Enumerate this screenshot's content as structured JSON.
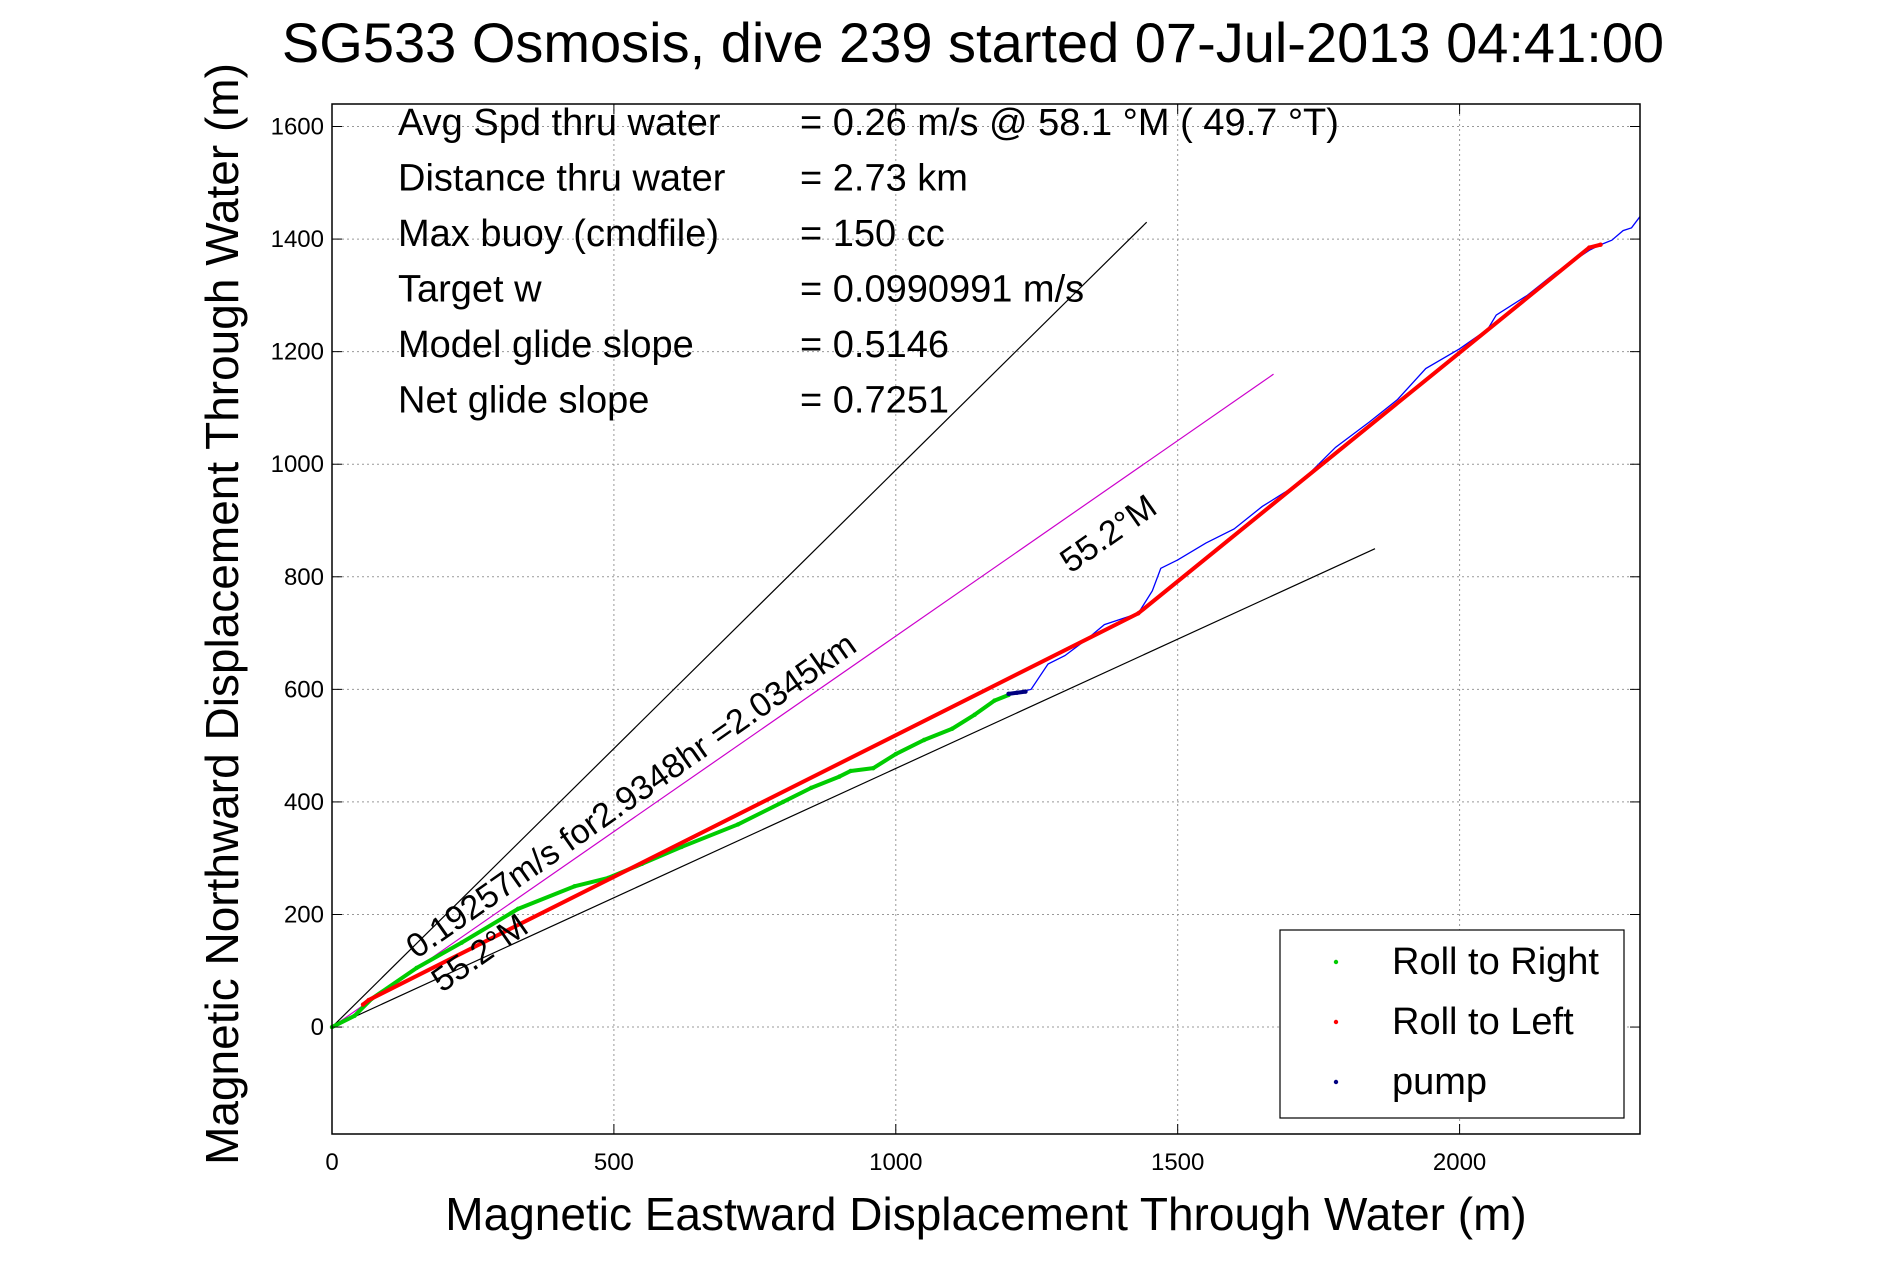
{
  "chart_data": {
    "type": "line",
    "title": "SG533 Osmosis, dive 239 started 07-Jul-2013 04:41:00",
    "xlabel": "Magnetic Eastward Displacement Through Water (m)",
    "ylabel": "Magnetic Northward Displacement Through Water (m)",
    "xlim": [
      0,
      2320
    ],
    "ylim": [
      -190,
      1640
    ],
    "xticks": [
      0,
      500,
      1000,
      1500,
      2000
    ],
    "yticks": [
      0,
      200,
      400,
      600,
      800,
      1000,
      1200,
      1400,
      1600
    ],
    "grid": true,
    "info_lines": [
      {
        "label": "Avg Spd thru water",
        "value": "=  0.26 m/s @  58.1 °M ( 49.7 °T)"
      },
      {
        "label": "Distance thru water",
        "value": "=  2.73 km"
      },
      {
        "label": "Max buoy (cmdfile)",
        "value": "= 150 cc"
      },
      {
        "label": "Target w",
        "value": "= 0.0990991 m/s"
      },
      {
        "label": "Model glide slope",
        "value": "= 0.5146"
      },
      {
        "label": "Net glide slope",
        "value": "= 0.7251"
      }
    ],
    "annotations": [
      {
        "text": "0.19257m/s for2.9348hr =2.0345km",
        "x": 150,
        "y": 120,
        "angle_deg": 35
      },
      {
        "text": "55.2°M",
        "x": 195,
        "y": 60,
        "angle_deg": 35
      },
      {
        "text": "55.2°M",
        "x": 1310,
        "y": 805,
        "angle_deg": 35
      }
    ],
    "reference_lines": [
      {
        "name": "upper",
        "color": "#000000",
        "points": [
          [
            0,
            0
          ],
          [
            1445,
            1430
          ]
        ]
      },
      {
        "name": "lower",
        "color": "#000000",
        "points": [
          [
            0,
            0
          ],
          [
            1850,
            850
          ]
        ]
      },
      {
        "name": "heading",
        "color": "#cc00cc",
        "points": [
          [
            0,
            0
          ],
          [
            1670,
            1160
          ]
        ]
      }
    ],
    "series": [
      {
        "name": "Roll to Right",
        "color": "#00cc00",
        "marker": "dot",
        "points": [
          [
            0,
            0
          ],
          [
            40,
            20
          ],
          [
            70,
            50
          ],
          [
            150,
            105
          ],
          [
            230,
            150
          ],
          [
            330,
            210
          ],
          [
            430,
            250
          ],
          [
            490,
            265
          ],
          [
            550,
            290
          ],
          [
            620,
            320
          ],
          [
            720,
            360
          ],
          [
            800,
            400
          ],
          [
            850,
            425
          ],
          [
            900,
            445
          ],
          [
            920,
            455
          ],
          [
            960,
            460
          ],
          [
            1000,
            485
          ],
          [
            1050,
            510
          ],
          [
            1100,
            530
          ],
          [
            1140,
            555
          ],
          [
            1175,
            580
          ],
          [
            1200,
            590
          ]
        ]
      },
      {
        "name": "Roll to Left",
        "color": "#ff0000",
        "marker": "dot",
        "points": [
          [
            55,
            40
          ],
          [
            65,
            48
          ],
          [
            1430,
            735
          ],
          [
            2230,
            1385
          ],
          [
            2250,
            1390
          ]
        ]
      },
      {
        "name": "pump",
        "color": "#000080",
        "marker": "dot",
        "points": [
          [
            1200,
            592
          ],
          [
            1215,
            594
          ],
          [
            1230,
            596
          ]
        ]
      },
      {
        "name": "",
        "color": "#0000ff",
        "marker": "none",
        "points": [
          [
            1200,
            590
          ],
          [
            1240,
            600
          ],
          [
            1270,
            645
          ],
          [
            1300,
            660
          ],
          [
            1340,
            690
          ],
          [
            1370,
            715
          ],
          [
            1400,
            725
          ],
          [
            1430,
            735
          ],
          [
            1455,
            775
          ],
          [
            1470,
            815
          ],
          [
            1500,
            830
          ],
          [
            1550,
            860
          ],
          [
            1600,
            885
          ],
          [
            1650,
            925
          ],
          [
            1690,
            950
          ],
          [
            1720,
            970
          ],
          [
            1760,
            1010
          ],
          [
            1780,
            1030
          ],
          [
            1840,
            1075
          ],
          [
            1890,
            1115
          ],
          [
            1940,
            1170
          ],
          [
            2000,
            1205
          ],
          [
            2050,
            1240
          ],
          [
            2065,
            1265
          ],
          [
            2120,
            1300
          ],
          [
            2170,
            1340
          ],
          [
            2200,
            1360
          ],
          [
            2230,
            1380
          ],
          [
            2250,
            1390
          ],
          [
            2270,
            1398
          ],
          [
            2290,
            1415
          ],
          [
            2305,
            1420
          ],
          [
            2320,
            1440
          ]
        ]
      }
    ],
    "legend": {
      "placement": "bottom-right",
      "entries": [
        {
          "label": "Roll to Right",
          "color": "#00cc00"
        },
        {
          "label": "Roll to Left",
          "color": "#ff0000"
        },
        {
          "label": "pump",
          "color": "#000080"
        }
      ]
    }
  }
}
